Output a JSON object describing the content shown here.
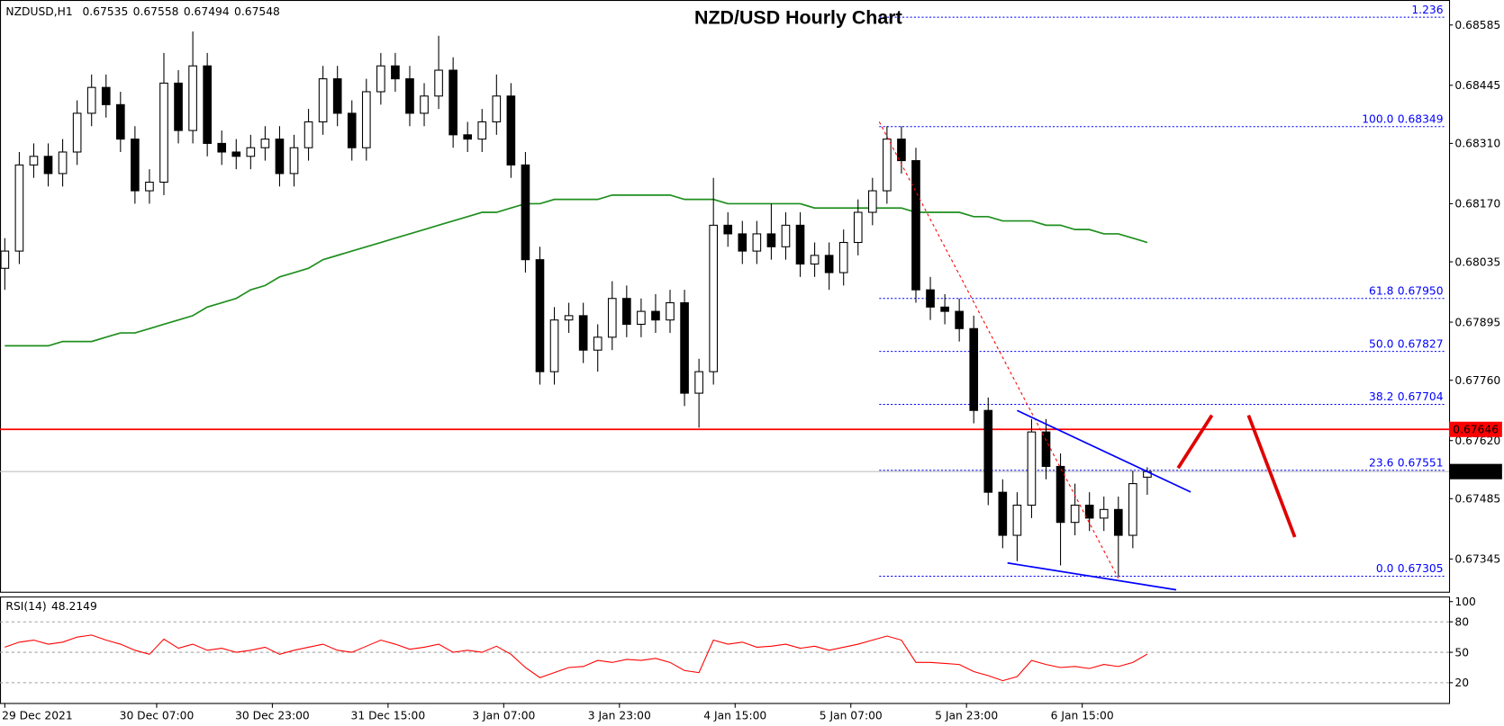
{
  "chart_data": {
    "type": "candlestick",
    "title": "NZD/USD Hourly Chart",
    "symbol": "NZDUSD,H1",
    "bull_color": "#ffffff",
    "bear_color": "#000000",
    "open": [
      0.6802,
      0.6806,
      0.6826,
      0.6828,
      0.6824,
      0.6829,
      0.6838,
      0.6844,
      0.684,
      0.6832,
      0.682,
      0.6822,
      0.6845,
      0.6834,
      0.6849,
      0.6831,
      0.6829,
      0.6828,
      0.683,
      0.6832,
      0.6824,
      0.683,
      0.6836,
      0.6846,
      0.6838,
      0.683,
      0.6843,
      0.6849,
      0.6846,
      0.6838,
      0.6842,
      0.6848,
      0.6833,
      0.6832,
      0.6836,
      0.6842,
      0.6826,
      0.6804,
      0.6778,
      0.679,
      0.6791,
      0.6783,
      0.6786,
      0.6795,
      0.6789,
      0.6792,
      0.679,
      0.6794,
      0.6773,
      0.6778,
      0.6812,
      0.681,
      0.6806,
      0.681,
      0.6807,
      0.6812,
      0.6803,
      0.6805,
      0.6801,
      0.6808,
      0.6815,
      0.682,
      0.6832,
      0.6827,
      0.6797,
      0.6793,
      0.6792,
      0.6788,
      0.6769,
      0.675,
      0.674,
      0.6747,
      0.6764,
      0.6756,
      0.6743,
      0.6747,
      0.6744,
      0.6746,
      0.674,
      0.67535
    ],
    "high": [
      0.6809,
      0.6829,
      0.6831,
      0.6831,
      0.6832,
      0.6841,
      0.6847,
      0.6847,
      0.6843,
      0.6835,
      0.6825,
      0.6852,
      0.6848,
      0.6857,
      0.6852,
      0.6834,
      0.6832,
      0.6833,
      0.6835,
      0.6835,
      0.6833,
      0.6839,
      0.6849,
      0.6849,
      0.6841,
      0.6846,
      0.6852,
      0.6852,
      0.6849,
      0.6845,
      0.6856,
      0.6851,
      0.6836,
      0.6839,
      0.6847,
      0.6845,
      0.6829,
      0.6807,
      0.6793,
      0.6794,
      0.6794,
      0.6789,
      0.6799,
      0.6798,
      0.6795,
      0.6796,
      0.6797,
      0.6797,
      0.6781,
      0.6823,
      0.6815,
      0.6813,
      0.6813,
      0.6817,
      0.6815,
      0.6815,
      0.6808,
      0.6808,
      0.6811,
      0.6818,
      0.6823,
      0.6835,
      0.6835,
      0.683,
      0.68,
      0.6796,
      0.6795,
      0.6791,
      0.6772,
      0.6753,
      0.675,
      0.6767,
      0.6767,
      0.6759,
      0.6752,
      0.675,
      0.6749,
      0.6749,
      0.6755,
      0.67558
    ],
    "low": [
      0.6797,
      0.6803,
      0.6823,
      0.6821,
      0.6821,
      0.6826,
      0.6835,
      0.6837,
      0.6829,
      0.6817,
      0.6817,
      0.6819,
      0.6831,
      0.6831,
      0.6828,
      0.6826,
      0.6825,
      0.6825,
      0.6827,
      0.6821,
      0.6821,
      0.6827,
      0.6833,
      0.6835,
      0.6827,
      0.6827,
      0.684,
      0.6843,
      0.6835,
      0.6835,
      0.6839,
      0.683,
      0.6829,
      0.6829,
      0.6833,
      0.6823,
      0.6801,
      0.6775,
      0.6775,
      0.6787,
      0.678,
      0.6778,
      0.6783,
      0.6786,
      0.6786,
      0.6787,
      0.6787,
      0.677,
      0.6765,
      0.6775,
      0.6807,
      0.6803,
      0.6803,
      0.6804,
      0.6804,
      0.68,
      0.68,
      0.6797,
      0.6798,
      0.6805,
      0.6812,
      0.6817,
      0.6824,
      0.6794,
      0.679,
      0.6789,
      0.6785,
      0.6766,
      0.6747,
      0.6737,
      0.6734,
      0.6744,
      0.6753,
      0.6733,
      0.674,
      0.6741,
      0.6741,
      0.67305,
      0.6737,
      0.67494
    ],
    "close": [
      0.6806,
      0.6826,
      0.6828,
      0.6824,
      0.6829,
      0.6838,
      0.6844,
      0.684,
      0.6832,
      0.682,
      0.6822,
      0.6845,
      0.6834,
      0.6849,
      0.6831,
      0.6829,
      0.6828,
      0.683,
      0.6832,
      0.6824,
      0.683,
      0.6836,
      0.6846,
      0.6838,
      0.683,
      0.6843,
      0.6849,
      0.6846,
      0.6838,
      0.6842,
      0.6848,
      0.6833,
      0.6832,
      0.6836,
      0.6842,
      0.6826,
      0.6804,
      0.6778,
      0.679,
      0.6791,
      0.6783,
      0.6786,
      0.6795,
      0.6789,
      0.6792,
      0.679,
      0.6794,
      0.6773,
      0.6778,
      0.6812,
      0.681,
      0.6806,
      0.681,
      0.6807,
      0.6812,
      0.6803,
      0.6805,
      0.6801,
      0.6808,
      0.6815,
      0.682,
      0.6832,
      0.6827,
      0.6797,
      0.6793,
      0.6792,
      0.6788,
      0.6769,
      0.675,
      0.674,
      0.6747,
      0.6764,
      0.6756,
      0.6743,
      0.6747,
      0.6744,
      0.6746,
      0.674,
      0.6752,
      0.67548
    ],
    "ma": {
      "color": "#1f8f1f",
      "values": [
        0.6784,
        0.6784,
        0.6784,
        0.6784,
        0.6785,
        0.6785,
        0.6785,
        0.6786,
        0.6787,
        0.6787,
        0.6788,
        0.6789,
        0.679,
        0.6791,
        0.6793,
        0.6794,
        0.6795,
        0.6797,
        0.6798,
        0.68,
        0.6801,
        0.6802,
        0.6804,
        0.6805,
        0.6806,
        0.6807,
        0.6808,
        0.6809,
        0.681,
        0.6811,
        0.6812,
        0.6813,
        0.6814,
        0.6815,
        0.6815,
        0.6816,
        0.6817,
        0.6817,
        0.6818,
        0.6818,
        0.6818,
        0.6818,
        0.6819,
        0.6819,
        0.6819,
        0.6819,
        0.6819,
        0.6818,
        0.6818,
        0.6818,
        0.6817,
        0.6817,
        0.6817,
        0.6817,
        0.6817,
        0.6817,
        0.6816,
        0.6816,
        0.6816,
        0.6816,
        0.6816,
        0.6816,
        0.6816,
        0.6815,
        0.6815,
        0.6815,
        0.6815,
        0.6814,
        0.6814,
        0.6813,
        0.6813,
        0.6813,
        0.6812,
        0.6812,
        0.6811,
        0.6811,
        0.681,
        0.681,
        0.6809,
        0.6808
      ]
    },
    "ylim": [
      0.67269,
      0.68643
    ],
    "yticks": [
      0.68585,
      0.68445,
      {
        "value": 0.6831,
        "label": "0.68310"
      },
      {
        "value": 0.6817,
        "label": "0.68170"
      },
      0.68035,
      0.67895,
      {
        "value": 0.6776,
        "label": "0.67760"
      },
      {
        "value": 0.6762,
        "label": "0.67620"
      },
      0.67485,
      0.67345
    ],
    "xticks": [
      {
        "value": 0,
        "label": "29 Dec 2021"
      },
      {
        "value": 10.5,
        "label": "30 Dec 07:00"
      },
      {
        "value": 18.5,
        "label": "30 Dec 23:00"
      },
      {
        "value": 26.5,
        "label": "31 Dec 15:00"
      },
      {
        "value": 34.5,
        "label": "3 Jan 07:00"
      },
      {
        "value": 42.5,
        "label": "3 Jan 23:00"
      },
      {
        "value": 50.5,
        "label": "4 Jan 15:00"
      },
      {
        "value": 58.5,
        "label": "5 Jan 07:00"
      },
      {
        "value": 66.5,
        "label": "5 Jan 23:00"
      },
      {
        "value": 74.5,
        "label": "6 Jan 15:00"
      }
    ],
    "resistance": {
      "value": 0.67646,
      "color": "#ff0000"
    },
    "fibonacci": {
      "color": "#0000ff",
      "levels": [
        {
          "ratio": "1.236",
          "price": 0.68603
        },
        {
          "ratio": "100.0",
          "price": 0.68349
        },
        {
          "ratio": "61.8",
          "price": {
            "value": 0.6795,
            "label": "0.67950"
          }
        },
        {
          "ratio": "50.0",
          "price": 0.67827
        },
        {
          "ratio": "38.2",
          "price": 0.67704
        },
        {
          "ratio": "23.6",
          "price": 0.67551
        },
        {
          "ratio": "0.0",
          "price": 0.67305
        }
      ]
    },
    "rsi": {
      "name": "RSI(14)",
      "color": "#ff0000",
      "ylim": [
        0,
        105
      ],
      "yticks": [
        20,
        50,
        80,
        100
      ],
      "values": [
        55,
        60,
        62,
        58,
        60,
        65,
        67,
        62,
        58,
        52,
        48,
        63,
        54,
        58,
        52,
        54,
        50,
        52,
        55,
        48,
        52,
        55,
        58,
        52,
        50,
        56,
        62,
        58,
        53,
        55,
        58,
        50,
        52,
        50,
        56,
        48,
        35,
        25,
        30,
        35,
        36,
        42,
        40,
        43,
        42,
        44,
        40,
        32,
        30,
        62,
        58,
        60,
        55,
        56,
        58,
        54,
        56,
        52,
        55,
        58,
        62,
        66,
        62,
        40,
        40,
        39,
        38,
        31,
        27,
        22,
        26,
        42,
        38,
        35,
        36,
        34,
        38,
        36,
        40,
        48.2149
      ]
    }
  }
}
